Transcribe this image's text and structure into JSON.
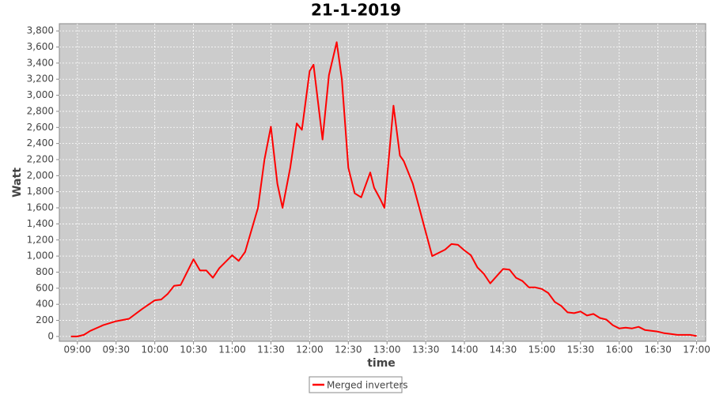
{
  "chart_data": {
    "type": "line",
    "title": "21-1-2019",
    "xlabel": "time",
    "ylabel": "Watt",
    "x": [
      "08:55",
      "09:00",
      "09:05",
      "09:10",
      "09:20",
      "09:30",
      "09:40",
      "09:50",
      "10:00",
      "10:05",
      "10:10",
      "10:15",
      "10:20",
      "10:30",
      "10:35",
      "10:40",
      "10:45",
      "10:50",
      "11:00",
      "11:05",
      "11:10",
      "11:20",
      "11:25",
      "11:30",
      "11:35",
      "11:39",
      "11:45",
      "11:50",
      "11:54",
      "12:00",
      "12:03",
      "12:10",
      "12:15",
      "12:21",
      "12:25",
      "12:30",
      "12:35",
      "12:40",
      "12:47",
      "12:50",
      "12:55",
      "12:58",
      "13:05",
      "13:10",
      "13:13",
      "13:20",
      "13:25",
      "13:30",
      "13:35",
      "13:40",
      "13:45",
      "13:50",
      "13:55",
      "14:00",
      "14:05",
      "14:10",
      "14:15",
      "14:20",
      "14:25",
      "14:30",
      "14:35",
      "14:40",
      "14:45",
      "14:50",
      "14:55",
      "15:00",
      "15:05",
      "15:10",
      "15:15",
      "15:20",
      "15:25",
      "15:30",
      "15:35",
      "15:40",
      "15:45",
      "15:50",
      "15:55",
      "16:00",
      "16:05",
      "16:10",
      "16:15",
      "16:20",
      "16:25",
      "16:30",
      "16:35",
      "16:40",
      "16:45",
      "16:50",
      "16:55",
      "17:00"
    ],
    "series": [
      {
        "name": "Merged inverters",
        "color": "#ff0000",
        "values": [
          0,
          0,
          20,
          70,
          140,
          190,
          220,
          340,
          450,
          460,
          530,
          630,
          640,
          960,
          820,
          820,
          730,
          850,
          1010,
          940,
          1050,
          1600,
          2200,
          2610,
          1900,
          1600,
          2100,
          2650,
          2570,
          3300,
          3380,
          2450,
          3250,
          3660,
          3200,
          2100,
          1780,
          1730,
          2040,
          1850,
          1700,
          1600,
          2870,
          2250,
          2180,
          1900,
          1600,
          1300,
          1000,
          1040,
          1080,
          1150,
          1140,
          1070,
          1010,
          860,
          780,
          660,
          750,
          840,
          830,
          730,
          690,
          610,
          610,
          590,
          540,
          430,
          380,
          300,
          290,
          310,
          260,
          280,
          230,
          210,
          140,
          100,
          110,
          100,
          120,
          80,
          70,
          60,
          40,
          30,
          20,
          20,
          20,
          5
        ]
      }
    ],
    "xlim": [
      "08:46",
      "17:07"
    ],
    "xticks": [
      "09:00",
      "09:30",
      "10:00",
      "10:30",
      "11:00",
      "11:30",
      "12:00",
      "12:30",
      "13:00",
      "13:30",
      "14:00",
      "14:30",
      "15:00",
      "15:30",
      "16:00",
      "16:30",
      "17:00"
    ],
    "ylim": [
      -60,
      3890
    ],
    "yticks": [
      0,
      200,
      400,
      600,
      800,
      {
        "value": 1000,
        "label": "1,000"
      },
      {
        "value": 1200,
        "label": "1,200"
      },
      {
        "value": 1400,
        "label": "1,400"
      },
      {
        "value": 1600,
        "label": "1,600"
      },
      {
        "value": 1800,
        "label": "1,800"
      },
      {
        "value": 2000,
        "label": "2,000"
      },
      {
        "value": 2200,
        "label": "2,200"
      },
      {
        "value": 2400,
        "label": "2,400"
      },
      {
        "value": 2600,
        "label": "2,600"
      },
      {
        "value": 2800,
        "label": "2,800"
      },
      {
        "value": 3000,
        "label": "3,000"
      },
      {
        "value": 3200,
        "label": "3,200"
      },
      {
        "value": 3400,
        "label": "3,400"
      },
      {
        "value": 3600,
        "label": "3,600"
      },
      {
        "value": 3800,
        "label": "3,800"
      }
    ],
    "grid": true,
    "legend": "bottom"
  }
}
